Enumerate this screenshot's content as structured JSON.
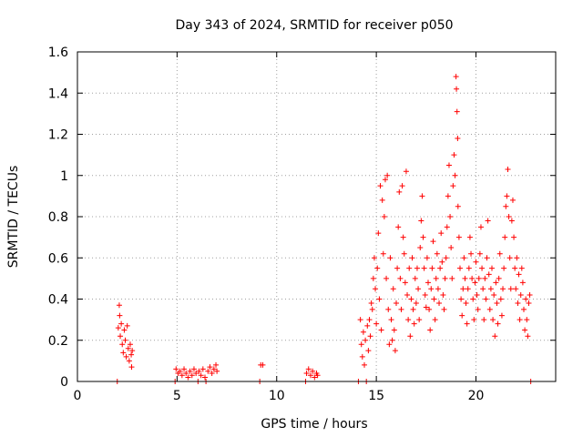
{
  "chart_data": {
    "type": "scatter",
    "title": "Day 343 of 2024, SRMTID for receiver p050",
    "xlabel": "GPS time / hours",
    "ylabel": "SRMTID / TECUs",
    "xlim": [
      0,
      24
    ],
    "ylim": [
      0,
      1.6
    ],
    "x_ticks": [
      0,
      5,
      10,
      15,
      20
    ],
    "y_ticks": [
      0,
      0.2,
      0.4,
      0.6,
      0.8,
      1,
      1.2,
      1.4,
      1.6
    ],
    "x_tick_labels": [
      "0",
      "5",
      "10",
      "15",
      "20"
    ],
    "y_tick_labels": [
      "0",
      "0.2",
      "0.4",
      "0.6",
      "0.8",
      "1",
      "1.2",
      "1.4",
      "1.6"
    ],
    "grid": true,
    "marker": "+",
    "series": [
      {
        "name": "SRMTID",
        "color": "#ff0000",
        "points": [
          [
            2.0,
            0.0
          ],
          [
            2.05,
            0.26
          ],
          [
            2.1,
            0.37
          ],
          [
            2.12,
            0.32
          ],
          [
            2.15,
            0.22
          ],
          [
            2.2,
            0.28
          ],
          [
            2.25,
            0.18
          ],
          [
            2.3,
            0.14
          ],
          [
            2.35,
            0.25
          ],
          [
            2.4,
            0.2
          ],
          [
            2.45,
            0.12
          ],
          [
            2.5,
            0.27
          ],
          [
            2.55,
            0.16
          ],
          [
            2.6,
            0.1
          ],
          [
            2.65,
            0.18
          ],
          [
            2.7,
            0.13
          ],
          [
            2.72,
            0.07
          ],
          [
            2.75,
            0.15
          ],
          [
            4.9,
            0.0
          ],
          [
            4.95,
            0.06
          ],
          [
            5.05,
            0.04
          ],
          [
            5.15,
            0.05
          ],
          [
            5.25,
            0.03
          ],
          [
            5.35,
            0.06
          ],
          [
            5.45,
            0.04
          ],
          [
            5.55,
            0.02
          ],
          [
            5.65,
            0.05
          ],
          [
            5.75,
            0.03
          ],
          [
            5.85,
            0.06
          ],
          [
            5.95,
            0.04
          ],
          [
            6.05,
            0.0
          ],
          [
            6.1,
            0.05
          ],
          [
            6.2,
            0.03
          ],
          [
            6.3,
            0.06
          ],
          [
            6.4,
            0.02
          ],
          [
            6.45,
            0.0
          ],
          [
            6.55,
            0.05
          ],
          [
            6.65,
            0.07
          ],
          [
            6.75,
            0.04
          ],
          [
            6.85,
            0.06
          ],
          [
            6.95,
            0.08
          ],
          [
            7.0,
            0.05
          ],
          [
            9.15,
            0.0
          ],
          [
            9.2,
            0.08
          ],
          [
            9.3,
            0.08
          ],
          [
            11.45,
            0.0
          ],
          [
            11.5,
            0.04
          ],
          [
            11.6,
            0.06
          ],
          [
            11.7,
            0.03
          ],
          [
            11.8,
            0.05
          ],
          [
            11.9,
            0.02
          ],
          [
            12.0,
            0.04
          ],
          [
            12.05,
            0.03
          ],
          [
            14.1,
            0.0
          ],
          [
            14.2,
            0.3
          ],
          [
            14.25,
            0.18
          ],
          [
            14.3,
            0.12
          ],
          [
            14.35,
            0.24
          ],
          [
            14.4,
            0.08
          ],
          [
            14.45,
            0.2
          ],
          [
            14.5,
            0.0
          ],
          [
            14.55,
            0.27
          ],
          [
            14.6,
            0.15
          ],
          [
            14.65,
            0.3
          ],
          [
            14.7,
            0.22
          ],
          [
            14.75,
            0.38
          ],
          [
            14.8,
            0.35
          ],
          [
            14.85,
            0.5
          ],
          [
            14.9,
            0.6
          ],
          [
            14.95,
            0.45
          ],
          [
            15.0,
            0.28
          ],
          [
            15.05,
            0.55
          ],
          [
            15.1,
            0.72
          ],
          [
            15.15,
            0.4
          ],
          [
            15.2,
            0.95
          ],
          [
            15.25,
            0.25
          ],
          [
            15.3,
            0.88
          ],
          [
            15.35,
            0.62
          ],
          [
            15.4,
            0.8
          ],
          [
            15.45,
            0.98
          ],
          [
            15.5,
            0.5
          ],
          [
            15.55,
            1.0
          ],
          [
            15.6,
            0.35
          ],
          [
            15.65,
            0.18
          ],
          [
            15.7,
            0.6
          ],
          [
            15.75,
            0.3
          ],
          [
            15.8,
            0.2
          ],
          [
            15.85,
            0.45
          ],
          [
            15.9,
            0.25
          ],
          [
            15.95,
            0.15
          ],
          [
            16.0,
            0.38
          ],
          [
            16.05,
            0.55
          ],
          [
            16.1,
            0.75
          ],
          [
            16.15,
            0.92
          ],
          [
            16.2,
            0.5
          ],
          [
            16.25,
            0.35
          ],
          [
            16.3,
            0.95
          ],
          [
            16.35,
            0.7
          ],
          [
            16.4,
            0.62
          ],
          [
            16.45,
            0.48
          ],
          [
            16.5,
            1.02
          ],
          [
            16.55,
            0.42
          ],
          [
            16.6,
            0.3
          ],
          [
            16.65,
            0.55
          ],
          [
            16.7,
            0.22
          ],
          [
            16.75,
            0.4
          ],
          [
            16.8,
            0.6
          ],
          [
            16.85,
            0.35
          ],
          [
            16.9,
            0.28
          ],
          [
            16.95,
            0.5
          ],
          [
            17.0,
            0.38
          ],
          [
            17.05,
            0.55
          ],
          [
            17.1,
            0.45
          ],
          [
            17.15,
            0.3
          ],
          [
            17.2,
            0.65
          ],
          [
            17.25,
            0.78
          ],
          [
            17.3,
            0.9
          ],
          [
            17.35,
            0.7
          ],
          [
            17.4,
            0.55
          ],
          [
            17.45,
            0.42
          ],
          [
            17.5,
            0.36
          ],
          [
            17.55,
            0.6
          ],
          [
            17.6,
            0.48
          ],
          [
            17.65,
            0.35
          ],
          [
            17.7,
            0.25
          ],
          [
            17.75,
            0.45
          ],
          [
            17.8,
            0.55
          ],
          [
            17.85,
            0.68
          ],
          [
            17.9,
            0.4
          ],
          [
            17.95,
            0.3
          ],
          [
            18.0,
            0.5
          ],
          [
            18.05,
            0.62
          ],
          [
            18.1,
            0.45
          ],
          [
            18.15,
            0.38
          ],
          [
            18.2,
            0.55
          ],
          [
            18.25,
            0.72
          ],
          [
            18.3,
            0.58
          ],
          [
            18.35,
            0.42
          ],
          [
            18.4,
            0.35
          ],
          [
            18.45,
            0.5
          ],
          [
            18.5,
            0.6
          ],
          [
            18.55,
            0.75
          ],
          [
            18.6,
            0.9
          ],
          [
            18.65,
            1.05
          ],
          [
            18.7,
            0.8
          ],
          [
            18.75,
            0.65
          ],
          [
            18.8,
            0.5
          ],
          [
            18.85,
            0.95
          ],
          [
            18.9,
            1.1
          ],
          [
            18.95,
            1.0
          ],
          [
            19.0,
            1.48
          ],
          [
            19.02,
            1.42
          ],
          [
            19.05,
            1.31
          ],
          [
            19.08,
            1.18
          ],
          [
            19.1,
            0.85
          ],
          [
            19.15,
            0.7
          ],
          [
            19.2,
            0.55
          ],
          [
            19.25,
            0.4
          ],
          [
            19.3,
            0.32
          ],
          [
            19.35,
            0.45
          ],
          [
            19.4,
            0.6
          ],
          [
            19.45,
            0.5
          ],
          [
            19.5,
            0.38
          ],
          [
            19.55,
            0.28
          ],
          [
            19.6,
            0.45
          ],
          [
            19.65,
            0.55
          ],
          [
            19.7,
            0.7
          ],
          [
            19.75,
            0.62
          ],
          [
            19.8,
            0.5
          ],
          [
            19.85,
            0.4
          ],
          [
            19.9,
            0.3
          ],
          [
            19.95,
            0.48
          ],
          [
            20.0,
            0.58
          ],
          [
            20.05,
            0.42
          ],
          [
            20.1,
            0.35
          ],
          [
            20.15,
            0.5
          ],
          [
            20.2,
            0.62
          ],
          [
            20.25,
            0.75
          ],
          [
            20.3,
            0.55
          ],
          [
            20.35,
            0.45
          ],
          [
            20.4,
            0.3
          ],
          [
            20.45,
            0.5
          ],
          [
            20.5,
            0.4
          ],
          [
            20.55,
            0.6
          ],
          [
            20.6,
            0.78
          ],
          [
            20.65,
            0.52
          ],
          [
            20.7,
            0.35
          ],
          [
            20.75,
            0.45
          ],
          [
            20.8,
            0.55
          ],
          [
            20.85,
            0.3
          ],
          [
            20.9,
            0.42
          ],
          [
            20.95,
            0.22
          ],
          [
            21.0,
            0.48
          ],
          [
            21.05,
            0.38
          ],
          [
            21.1,
            0.28
          ],
          [
            21.15,
            0.5
          ],
          [
            21.2,
            0.62
          ],
          [
            21.25,
            0.4
          ],
          [
            21.3,
            0.32
          ],
          [
            21.35,
            0.45
          ],
          [
            21.4,
            0.55
          ],
          [
            21.45,
            0.7
          ],
          [
            21.5,
            0.85
          ],
          [
            21.55,
            0.9
          ],
          [
            21.6,
            1.03
          ],
          [
            21.65,
            0.8
          ],
          [
            21.7,
            0.6
          ],
          [
            21.75,
            0.45
          ],
          [
            21.8,
            0.78
          ],
          [
            21.85,
            0.88
          ],
          [
            21.9,
            0.7
          ],
          [
            21.95,
            0.55
          ],
          [
            22.0,
            0.45
          ],
          [
            22.05,
            0.6
          ],
          [
            22.1,
            0.38
          ],
          [
            22.15,
            0.52
          ],
          [
            22.2,
            0.3
          ],
          [
            22.25,
            0.42
          ],
          [
            22.3,
            0.55
          ],
          [
            22.35,
            0.48
          ],
          [
            22.4,
            0.35
          ],
          [
            22.45,
            0.25
          ],
          [
            22.5,
            0.4
          ],
          [
            22.55,
            0.3
          ],
          [
            22.6,
            0.22
          ],
          [
            22.65,
            0.38
          ],
          [
            22.7,
            0.42
          ],
          [
            22.75,
            0.0
          ]
        ]
      }
    ]
  }
}
